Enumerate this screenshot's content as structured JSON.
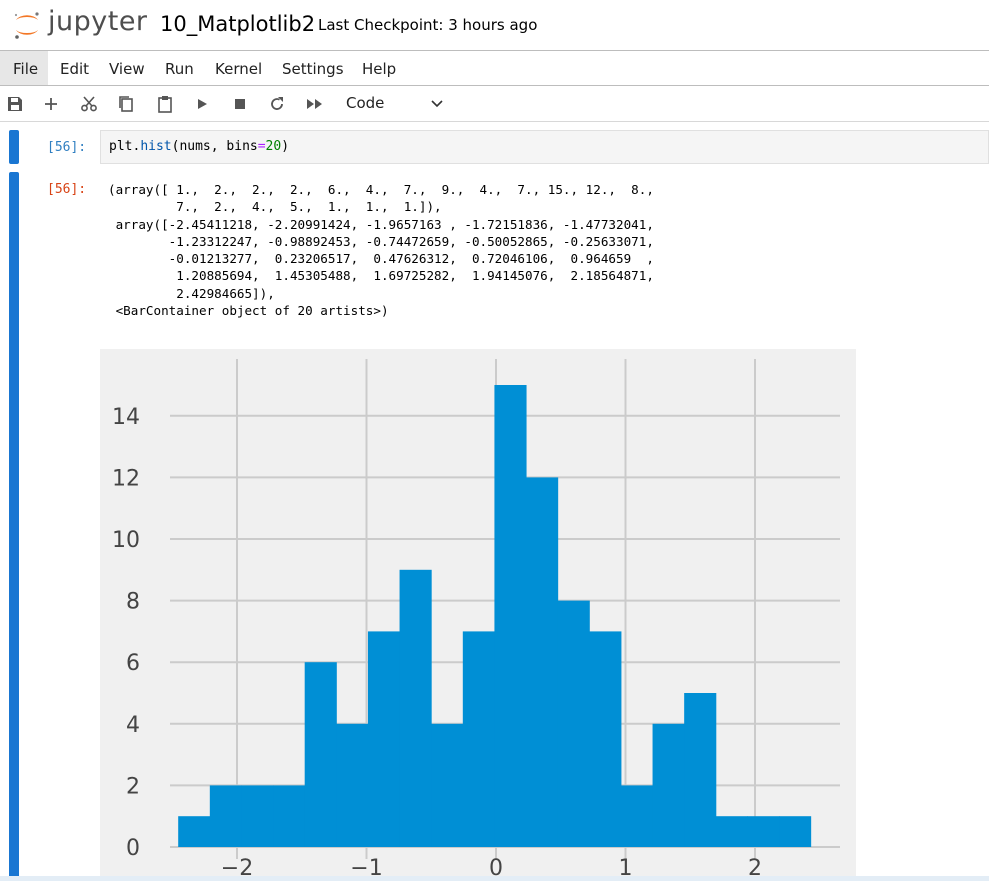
{
  "header": {
    "logo_text": "jupyter",
    "notebook_title": "10_Matplotlib2",
    "checkpoint": "Last Checkpoint: 3 hours ago"
  },
  "menu": [
    "File",
    "Edit",
    "View",
    "Run",
    "Kernel",
    "Settings",
    "Help"
  ],
  "toolbar": {
    "icons": [
      "save-icon",
      "add-icon",
      "cut-icon",
      "copy-icon",
      "paste-icon",
      "run-icon",
      "stop-icon",
      "restart-icon",
      "fast-forward-icon"
    ],
    "cell_type": "Code"
  },
  "cell": {
    "in_prompt": "[56]:",
    "out_prompt": "[56]:",
    "code": {
      "fn": "plt.",
      "fn_name": "hist",
      "args_open": "(nums, bins",
      "eq": "=",
      "num": "20",
      "args_close": ")"
    },
    "output_text": "(array([ 1.,  2.,  2.,  2.,  6.,  4.,  7.,  9.,  4.,  7., 15., 12.,  8.,\n         7.,  2.,  4.,  5.,  1.,  1.,  1.]),\n array([-2.45411218, -2.20991424, -1.9657163 , -1.72151836, -1.47732041,\n        -1.23312247, -0.98892453, -0.74472659, -0.50052865, -0.25633071,\n        -0.01213277,  0.23206517,  0.47626312,  0.72046106,  0.964659  ,\n         1.20885694,  1.45305488,  1.69725282,  1.94145076,  2.18564871,\n         2.42984665]),\n <BarContainer object of 20 artists>)"
  },
  "chart_data": {
    "type": "bar",
    "title": "",
    "xlabel": "",
    "ylabel": "",
    "bin_edges": [
      -2.45411218,
      -2.20991424,
      -1.9657163,
      -1.72151836,
      -1.47732041,
      -1.23312247,
      -0.98892453,
      -0.74472659,
      -0.50052865,
      -0.25633071,
      -0.01213277,
      0.23206517,
      0.47626312,
      0.72046106,
      0.964659,
      1.20885694,
      1.45305488,
      1.69725282,
      1.94145076,
      2.18564871,
      2.42984665
    ],
    "values": [
      1,
      2,
      2,
      2,
      6,
      4,
      7,
      9,
      4,
      7,
      15,
      12,
      8,
      7,
      2,
      4,
      5,
      1,
      1,
      1
    ],
    "xticks": [
      -2,
      -1,
      0,
      1,
      2
    ],
    "xtick_labels": [
      "−2",
      "−1",
      "0",
      "1",
      "2"
    ],
    "yticks": [
      0,
      2,
      4,
      6,
      8,
      10,
      12,
      14
    ],
    "ytick_labels": [
      "0",
      "2",
      "4",
      "6",
      "8",
      "10",
      "12",
      "14"
    ],
    "ylim": [
      0,
      15.75
    ],
    "grid": true,
    "bar_color": "#008fd5",
    "background_color": "#f0f0f0",
    "grid_color": "#cbcbcb"
  }
}
